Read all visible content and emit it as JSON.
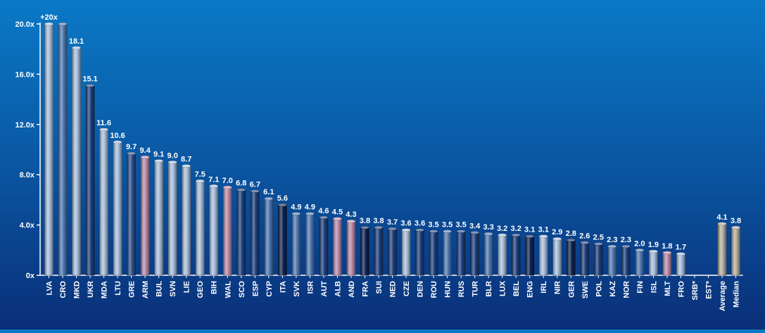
{
  "chart_data": {
    "type": "bar",
    "title": "",
    "xlabel": "",
    "ylabel": "",
    "ylim": [
      0,
      20
    ],
    "yticks": [
      0,
      4,
      8,
      12,
      16,
      20
    ],
    "ytick_labels": [
      "0x",
      "4.0x",
      "8.0x",
      "12.0x",
      "16.0x",
      "20.0x"
    ],
    "grid": false,
    "categories": [
      "LVA",
      "CRO",
      "MKD",
      "UKR",
      "MDA",
      "LTU",
      "GRE",
      "ARM",
      "BUL",
      "SVN",
      "LIE",
      "GEO",
      "BIH",
      "WAL",
      "SCO",
      "ESP",
      "CYP",
      "ITA",
      "SVK",
      "ISR",
      "AUT",
      "ALB",
      "AND",
      "FRA",
      "SUI",
      "NED",
      "CZE",
      "DEN",
      "ROU",
      "HUN",
      "RUS",
      "TUR",
      "BLR",
      "LUX",
      "BEL",
      "ENG",
      "IRL",
      "NIR",
      "GER",
      "SWE",
      "POL",
      "KAZ",
      "NOR",
      "FIN",
      "ISL",
      "MLT",
      "FRO",
      "SRB*",
      "EST*",
      "Average",
      "Median"
    ],
    "values": [
      20,
      20,
      18.1,
      15.1,
      11.6,
      10.6,
      9.7,
      9.4,
      9.1,
      9.0,
      8.7,
      7.5,
      7.1,
      7.0,
      6.8,
      6.7,
      6.1,
      5.6,
      4.9,
      4.9,
      4.6,
      4.5,
      4.3,
      3.8,
      3.8,
      3.7,
      3.6,
      3.6,
      3.5,
      3.5,
      3.5,
      3.4,
      3.3,
      3.2,
      3.2,
      3.1,
      3.1,
      2.9,
      2.8,
      2.6,
      2.5,
      2.3,
      2.3,
      2.0,
      1.9,
      1.8,
      1.7,
      null,
      null,
      4.1,
      3.8
    ],
    "value_labels": [
      "+20x",
      "",
      "18.1",
      "15.1",
      "11.6",
      "10.6",
      "9.7",
      "9.4",
      "9.1",
      "9.0",
      "8.7",
      "7.5",
      "7.1",
      "7.0",
      "6.8",
      "6.7",
      "6.1",
      "5.6",
      "4.9",
      "4.9",
      "4.6",
      "4.5",
      "4.3",
      "3.8",
      "3.8",
      "3.7",
      "3.6",
      "3.6",
      "3.5",
      "3.5",
      "3.5",
      "3.4",
      "3.3",
      "3.2",
      "3.2",
      "3.1",
      "3.1",
      "2.9",
      "2.8",
      "2.6",
      "2.5",
      "2.3",
      "2.3",
      "2.0",
      "1.9",
      "1.8",
      "1.7",
      "",
      "",
      "4.1",
      "3.8"
    ],
    "colors": [
      "#a8bedb",
      "#4f79b4",
      "#a8bedb",
      "#1d3f7c",
      "#a8bedb",
      "#a8bedb",
      "#2c4f8a",
      "#b98aa8",
      "#a8bedb",
      "#a8bedb",
      "#a8bedb",
      "#a8bedb",
      "#a8bedb",
      "#b98aa8",
      "#1d3f7c",
      "#1d3f7c",
      "#4f79b4",
      "#0f2350",
      "#4f79b4",
      "#4f79b4",
      "#1d3f7c",
      "#b98aa8",
      "#b98aa8",
      "#0f2350",
      "#1d3f7c",
      "#1d3f7c",
      "#a8bedb",
      "#1d3f7c",
      "#1d3f7c",
      "#4f79b4",
      "#1d3f7c",
      "#1d3f7c",
      "#4f79b4",
      "#a8bedb",
      "#1d3f7c",
      "#0f2350",
      "#a8bedb",
      "#a8bedb",
      "#0f2350",
      "#1d3f7c",
      "#1d3f7c",
      "#4f79b4",
      "#1d3f7c",
      "#4f79b4",
      "#a8bedb",
      "#b98aa8",
      "#a8bedb",
      "#a8bedb",
      "#a8bedb",
      "#b3ae9e",
      "#b3ae9e"
    ]
  }
}
